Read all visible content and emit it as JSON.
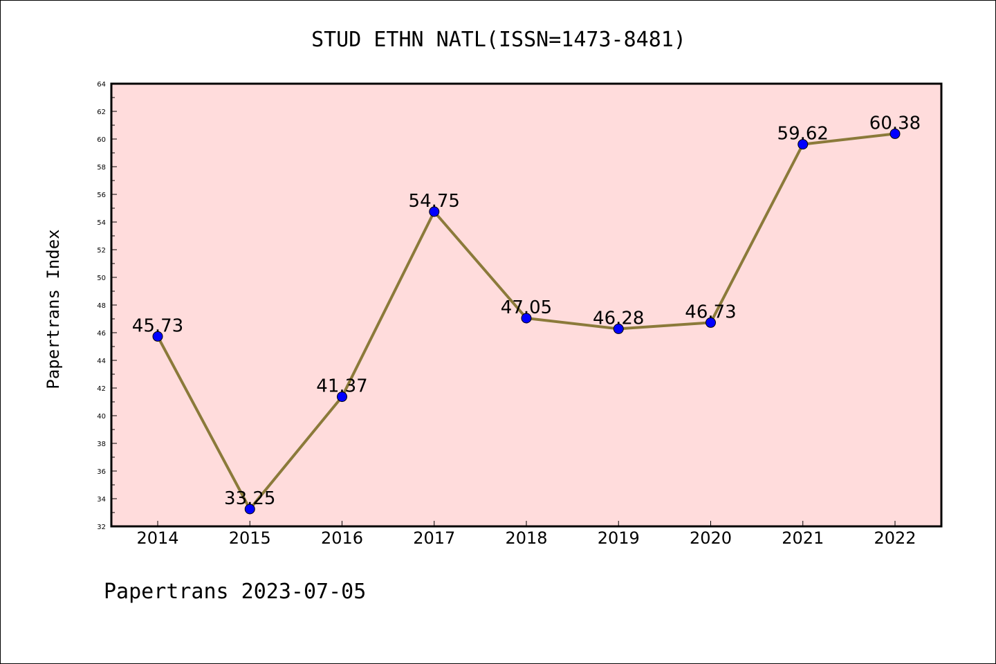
{
  "chart_data": {
    "type": "line",
    "title": "STUD ETHN NATL(ISSN=1473-8481)",
    "xlabel": "",
    "ylabel": "Papertrans Index",
    "footer": "Papertrans 2023-07-05",
    "categories": [
      "2014",
      "2015",
      "2016",
      "2017",
      "2018",
      "2019",
      "2020",
      "2021",
      "2022"
    ],
    "series": [
      {
        "values": [
          45.73,
          33.25,
          41.37,
          54.75,
          47.05,
          46.28,
          46.73,
          59.62,
          60.38
        ],
        "labels": [
          "45.73",
          "33.25",
          "41.37",
          "54.75",
          "47.05",
          "46.28",
          "46.73",
          "59.62",
          "60.38"
        ],
        "line_color": "#8b7a3a",
        "marker_color": "#0000ff"
      }
    ],
    "ylim": [
      32,
      64
    ],
    "yticks": [
      "32",
      "34",
      "36",
      "38",
      "40",
      "42",
      "44",
      "46",
      "48",
      "50",
      "52",
      "54",
      "56",
      "58",
      "60",
      "62",
      "64"
    ],
    "grid": false,
    "legend": "none",
    "plot_background": "#ffdcdc"
  }
}
